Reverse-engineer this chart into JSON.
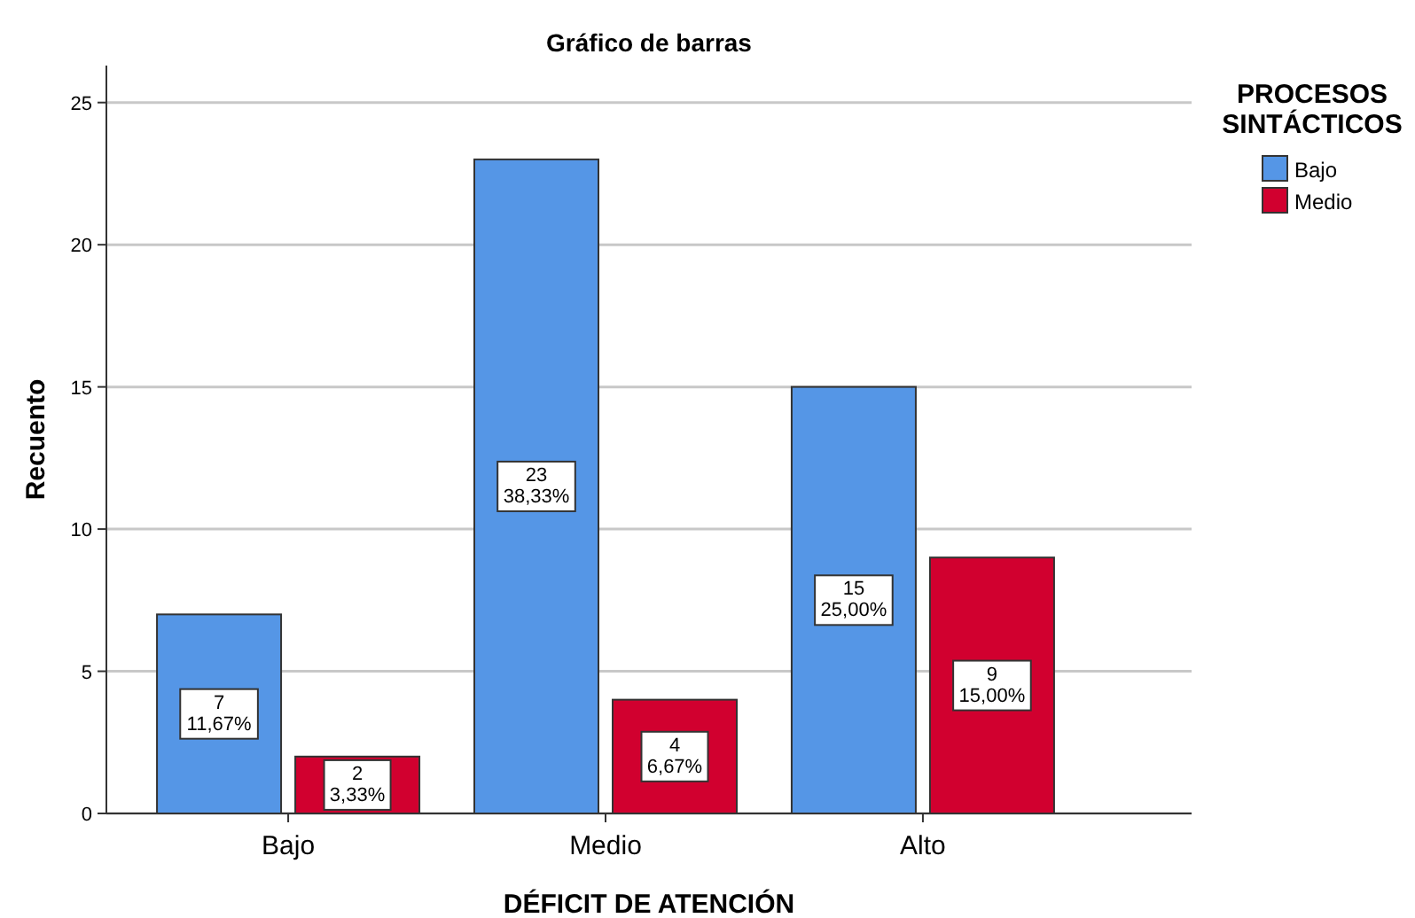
{
  "chart_data": {
    "type": "bar",
    "title": "Gráfico de barras",
    "xlabel": "DÉFICIT DE ATENCIÓN",
    "ylabel": "Recuento",
    "legend_title": "PROCESOS SINTÁCTICOS",
    "categories": [
      "Bajo",
      "Medio",
      "Alto"
    ],
    "series": [
      {
        "name": "Bajo",
        "color": "#5596e6",
        "values": [
          7,
          23,
          15
        ],
        "value_labels": [
          "7\n11,67%",
          "23\n38,33%",
          "15\n25,00%"
        ]
      },
      {
        "name": "Medio",
        "color": "#d1002f",
        "values": [
          2,
          4,
          9
        ],
        "value_labels": [
          "2\n3,33%",
          "4\n6,67%",
          "9\n15,00%"
        ]
      }
    ],
    "ylim": [
      0,
      26.3
    ],
    "yticks": [
      0,
      5,
      10,
      15,
      20,
      25
    ],
    "grid": "y",
    "legend": "top right"
  }
}
